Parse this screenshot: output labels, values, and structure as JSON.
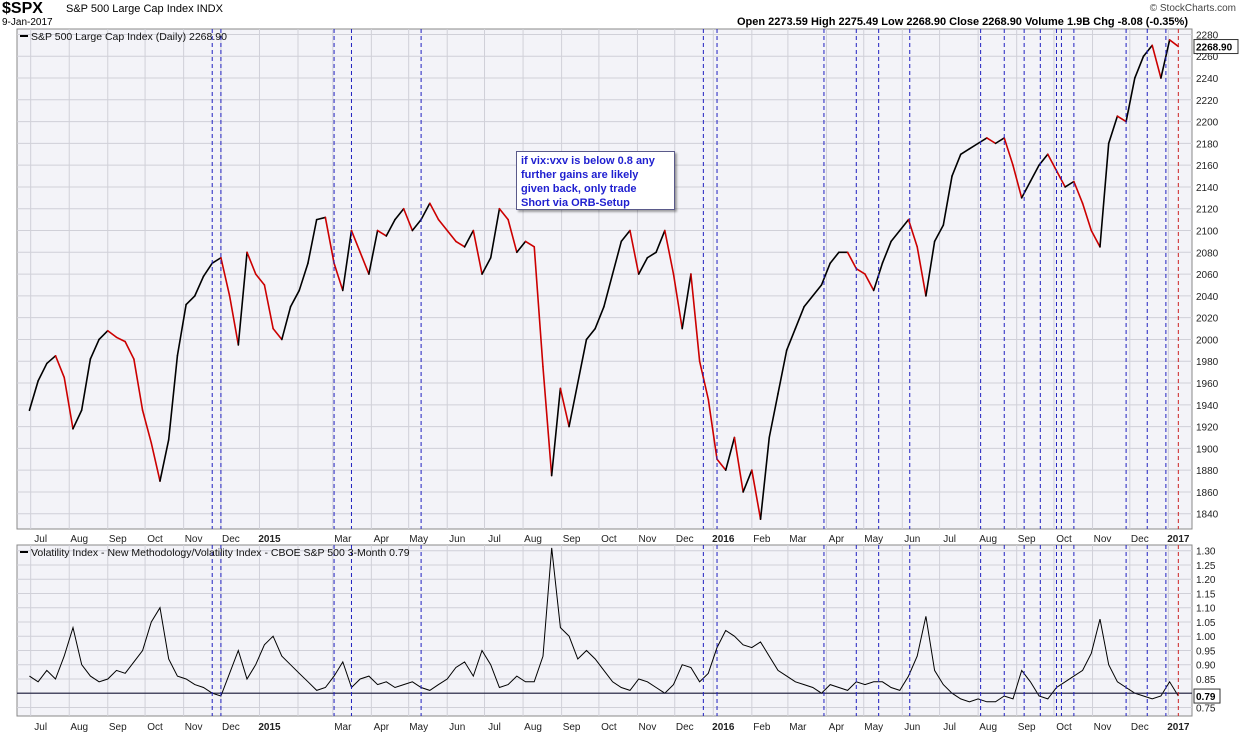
{
  "header": {
    "symbol": "$SPX",
    "description": "S&P 500 Large Cap Index INDX",
    "date": "9-Jan-2017",
    "brand": "© StockCharts.com",
    "ohlc": "Open 2273.59   High 2275.49   Low 2268.90   Close 2268.90   Volume 1.9B   Chg -8.08 (-0.35%)"
  },
  "annotation": "if vix:vxv is below 0.8 any\nfurther gains are likely\ngiven back, only trade\nShort via ORB-Setup",
  "colors": {
    "up": "#000000",
    "down": "#cc0000",
    "vline": "#2020c0",
    "last_vline": "#cc2222",
    "bg": "#f3f3f8",
    "grid": "#d0d0d8"
  },
  "chart_data": [
    {
      "type": "line",
      "title": "S&P 500 Large Cap Index (Daily) 2268.90",
      "last_value": "2268.90",
      "x_tick_labels": [
        "Jul",
        "Aug",
        "Sep",
        "Oct",
        "Nov",
        "Dec",
        "2015",
        "Mar",
        "Apr",
        "May",
        "Jun",
        "Jul",
        "Aug",
        "Sep",
        "Oct",
        "Nov",
        "Dec",
        "2016",
        "Feb",
        "Mar",
        "Apr",
        "May",
        "Jun",
        "Jul",
        "Aug",
        "Sep",
        "Oct",
        "Nov",
        "Dec",
        "2017"
      ],
      "y_ticks": [
        1840,
        1860,
        1880,
        1900,
        1920,
        1940,
        1960,
        1980,
        2000,
        2020,
        2040,
        2060,
        2080,
        2100,
        2120,
        2140,
        2160,
        2180,
        2200,
        2220,
        2240,
        2260,
        2280
      ],
      "ylim": [
        1826,
        2285
      ],
      "x": [
        "2014-06-30",
        "2014-07-07",
        "2014-07-14",
        "2014-07-21",
        "2014-07-28",
        "2014-08-04",
        "2014-08-11",
        "2014-08-18",
        "2014-08-25",
        "2014-09-01",
        "2014-09-08",
        "2014-09-15",
        "2014-09-22",
        "2014-09-29",
        "2014-10-06",
        "2014-10-13",
        "2014-10-20",
        "2014-10-27",
        "2014-11-03",
        "2014-11-10",
        "2014-11-17",
        "2014-11-24",
        "2014-12-01",
        "2014-12-08",
        "2014-12-15",
        "2014-12-22",
        "2014-12-29",
        "2015-01-05",
        "2015-01-12",
        "2015-01-19",
        "2015-01-26",
        "2015-02-02",
        "2015-02-09",
        "2015-02-16",
        "2015-02-23",
        "2015-03-02",
        "2015-03-09",
        "2015-03-16",
        "2015-03-23",
        "2015-03-30",
        "2015-04-06",
        "2015-04-13",
        "2015-04-20",
        "2015-04-27",
        "2015-05-04",
        "2015-05-11",
        "2015-05-18",
        "2015-05-25",
        "2015-06-01",
        "2015-06-08",
        "2015-06-15",
        "2015-06-22",
        "2015-06-29",
        "2015-07-06",
        "2015-07-13",
        "2015-07-20",
        "2015-07-27",
        "2015-08-03",
        "2015-08-10",
        "2015-08-17",
        "2015-08-24",
        "2015-08-31",
        "2015-09-07",
        "2015-09-14",
        "2015-09-21",
        "2015-09-28",
        "2015-10-05",
        "2015-10-12",
        "2015-10-19",
        "2015-10-26",
        "2015-11-02",
        "2015-11-09",
        "2015-11-16",
        "2015-11-23",
        "2015-11-30",
        "2015-12-07",
        "2015-12-14",
        "2015-12-21",
        "2015-12-28",
        "2016-01-04",
        "2016-01-11",
        "2016-01-18",
        "2016-01-25",
        "2016-02-01",
        "2016-02-08",
        "2016-02-15",
        "2016-02-22",
        "2016-02-29",
        "2016-03-07",
        "2016-03-14",
        "2016-03-21",
        "2016-03-28",
        "2016-04-04",
        "2016-04-11",
        "2016-04-18",
        "2016-04-25",
        "2016-05-02",
        "2016-05-09",
        "2016-05-16",
        "2016-05-23",
        "2016-05-30",
        "2016-06-06",
        "2016-06-13",
        "2016-06-20",
        "2016-06-27",
        "2016-07-04",
        "2016-07-11",
        "2016-07-18",
        "2016-07-25",
        "2016-08-01",
        "2016-08-08",
        "2016-08-15",
        "2016-08-22",
        "2016-08-29",
        "2016-09-05",
        "2016-09-12",
        "2016-09-19",
        "2016-09-26",
        "2016-10-03",
        "2016-10-10",
        "2016-10-17",
        "2016-10-24",
        "2016-10-31",
        "2016-11-07",
        "2016-11-14",
        "2016-11-21",
        "2016-11-28",
        "2016-12-05",
        "2016-12-12",
        "2016-12-19",
        "2016-12-26",
        "2017-01-02",
        "2017-01-09"
      ],
      "values": [
        1935,
        1962,
        1978,
        1985,
        1965,
        1918,
        1935,
        1982,
        2000,
        2008,
        2002,
        1998,
        1982,
        1935,
        1905,
        1870,
        1908,
        1985,
        2032,
        2040,
        2058,
        2070,
        2075,
        2040,
        1995,
        2080,
        2060,
        2050,
        2010,
        2000,
        2030,
        2045,
        2070,
        2110,
        2112,
        2070,
        2045,
        2100,
        2080,
        2060,
        2100,
        2095,
        2110,
        2120,
        2100,
        2110,
        2125,
        2110,
        2100,
        2090,
        2085,
        2100,
        2060,
        2075,
        2120,
        2110,
        2080,
        2090,
        2085,
        1975,
        1875,
        1955,
        1920,
        1960,
        2000,
        2010,
        2030,
        2060,
        2090,
        2100,
        2060,
        2075,
        2080,
        2100,
        2060,
        2010,
        2060,
        1980,
        1945,
        1890,
        1880,
        1910,
        1860,
        1880,
        1835,
        1910,
        1950,
        1990,
        2010,
        2030,
        2040,
        2050,
        2070,
        2080,
        2080,
        2065,
        2060,
        2045,
        2070,
        2090,
        2100,
        2110,
        2085,
        2040,
        2090,
        2105,
        2150,
        2170,
        2175,
        2180,
        2185,
        2180,
        2185,
        2160,
        2130,
        2145,
        2160,
        2170,
        2155,
        2140,
        2145,
        2125,
        2100,
        2085,
        2180,
        2205,
        2200,
        2240,
        2260,
        2270,
        2240,
        2275,
        2269
      ],
      "last_price": 2268.9,
      "vertical_markers": [
        "2014-11-24",
        "2014-12-01",
        "2015-03-02",
        "2015-03-16",
        "2015-05-11",
        "2015-12-24",
        "2016-01-04",
        "2016-03-30",
        "2016-04-25",
        "2016-05-13",
        "2016-06-07",
        "2016-08-03",
        "2016-08-22",
        "2016-09-07",
        "2016-09-20",
        "2016-10-03",
        "2016-10-07",
        "2016-10-17",
        "2016-11-28",
        "2016-12-15",
        "2016-12-30",
        "2017-01-09"
      ]
    },
    {
      "type": "line",
      "title": "Volatility Index - New Methodology/Volatility Index - CBOE S&P 500 3-Month 0.79",
      "last_value": "0.79",
      "x_tick_labels": [
        "Jul",
        "Aug",
        "Sep",
        "Oct",
        "Nov",
        "Dec",
        "2015",
        "Mar",
        "Apr",
        "May",
        "Jun",
        "Jul",
        "Aug",
        "Sep",
        "Oct",
        "Nov",
        "Dec",
        "2016",
        "Feb",
        "Mar",
        "Apr",
        "May",
        "Jun",
        "Jul",
        "Aug",
        "Sep",
        "Oct",
        "Nov",
        "Dec",
        "2017"
      ],
      "y_ticks": [
        0.75,
        0.8,
        0.85,
        0.9,
        0.95,
        1.0,
        1.05,
        1.1,
        1.15,
        1.2,
        1.25,
        1.3
      ],
      "y_tick_labels": [
        "0.75",
        "",
        "0.85",
        "0.90",
        "0.95",
        "1.00",
        "1.05",
        "1.10",
        "1.15",
        "1.20",
        "1.25",
        "1.30"
      ],
      "ylim": [
        0.72,
        1.32
      ],
      "reference_line": 0.8,
      "x": [
        "2014-06-30",
        "2014-07-07",
        "2014-07-14",
        "2014-07-21",
        "2014-07-28",
        "2014-08-04",
        "2014-08-11",
        "2014-08-18",
        "2014-08-25",
        "2014-09-01",
        "2014-09-08",
        "2014-09-15",
        "2014-09-22",
        "2014-09-29",
        "2014-10-06",
        "2014-10-13",
        "2014-10-20",
        "2014-10-27",
        "2014-11-03",
        "2014-11-10",
        "2014-11-17",
        "2014-11-24",
        "2014-12-01",
        "2014-12-08",
        "2014-12-15",
        "2014-12-22",
        "2014-12-29",
        "2015-01-05",
        "2015-01-12",
        "2015-01-19",
        "2015-01-26",
        "2015-02-02",
        "2015-02-09",
        "2015-02-16",
        "2015-02-23",
        "2015-03-02",
        "2015-03-09",
        "2015-03-16",
        "2015-03-23",
        "2015-03-30",
        "2015-04-06",
        "2015-04-13",
        "2015-04-20",
        "2015-04-27",
        "2015-05-04",
        "2015-05-11",
        "2015-05-18",
        "2015-05-25",
        "2015-06-01",
        "2015-06-08",
        "2015-06-15",
        "2015-06-22",
        "2015-06-29",
        "2015-07-06",
        "2015-07-13",
        "2015-07-20",
        "2015-07-27",
        "2015-08-03",
        "2015-08-10",
        "2015-08-17",
        "2015-08-24",
        "2015-08-31",
        "2015-09-07",
        "2015-09-14",
        "2015-09-21",
        "2015-09-28",
        "2015-10-05",
        "2015-10-12",
        "2015-10-19",
        "2015-10-26",
        "2015-11-02",
        "2015-11-09",
        "2015-11-16",
        "2015-11-23",
        "2015-11-30",
        "2015-12-07",
        "2015-12-14",
        "2015-12-21",
        "2015-12-28",
        "2016-01-04",
        "2016-01-11",
        "2016-01-18",
        "2016-01-25",
        "2016-02-01",
        "2016-02-08",
        "2016-02-15",
        "2016-02-22",
        "2016-02-29",
        "2016-03-07",
        "2016-03-14",
        "2016-03-21",
        "2016-03-28",
        "2016-04-04",
        "2016-04-11",
        "2016-04-18",
        "2016-04-25",
        "2016-05-02",
        "2016-05-09",
        "2016-05-16",
        "2016-05-23",
        "2016-05-30",
        "2016-06-06",
        "2016-06-13",
        "2016-06-20",
        "2016-06-27",
        "2016-07-04",
        "2016-07-11",
        "2016-07-18",
        "2016-07-25",
        "2016-08-01",
        "2016-08-08",
        "2016-08-15",
        "2016-08-22",
        "2016-08-29",
        "2016-09-05",
        "2016-09-12",
        "2016-09-19",
        "2016-09-26",
        "2016-10-03",
        "2016-10-10",
        "2016-10-17",
        "2016-10-24",
        "2016-10-31",
        "2016-11-07",
        "2016-11-14",
        "2016-11-21",
        "2016-11-28",
        "2016-12-05",
        "2016-12-12",
        "2016-12-19",
        "2016-12-26",
        "2017-01-02",
        "2017-01-09"
      ],
      "values": [
        0.86,
        0.84,
        0.88,
        0.85,
        0.93,
        1.03,
        0.9,
        0.86,
        0.84,
        0.85,
        0.88,
        0.87,
        0.91,
        0.95,
        1.05,
        1.1,
        0.92,
        0.86,
        0.85,
        0.83,
        0.82,
        0.8,
        0.79,
        0.87,
        0.95,
        0.85,
        0.9,
        0.97,
        1.0,
        0.93,
        0.9,
        0.87,
        0.84,
        0.81,
        0.82,
        0.86,
        0.91,
        0.82,
        0.85,
        0.86,
        0.83,
        0.84,
        0.82,
        0.83,
        0.84,
        0.82,
        0.81,
        0.83,
        0.85,
        0.89,
        0.91,
        0.86,
        0.95,
        0.9,
        0.82,
        0.83,
        0.86,
        0.84,
        0.84,
        0.93,
        1.31,
        1.03,
        1.0,
        0.92,
        0.95,
        0.92,
        0.88,
        0.84,
        0.82,
        0.81,
        0.85,
        0.84,
        0.82,
        0.8,
        0.83,
        0.9,
        0.89,
        0.84,
        0.87,
        0.96,
        1.02,
        1.0,
        0.97,
        0.96,
        0.98,
        0.93,
        0.88,
        0.86,
        0.84,
        0.83,
        0.82,
        0.8,
        0.83,
        0.82,
        0.81,
        0.84,
        0.83,
        0.84,
        0.84,
        0.82,
        0.81,
        0.86,
        0.93,
        1.07,
        0.88,
        0.83,
        0.8,
        0.78,
        0.77,
        0.78,
        0.77,
        0.77,
        0.79,
        0.78,
        0.88,
        0.84,
        0.79,
        0.78,
        0.82,
        0.84,
        0.86,
        0.88,
        0.94,
        1.06,
        0.9,
        0.84,
        0.82,
        0.8,
        0.79,
        0.78,
        0.79,
        0.84,
        0.79
      ]
    }
  ]
}
